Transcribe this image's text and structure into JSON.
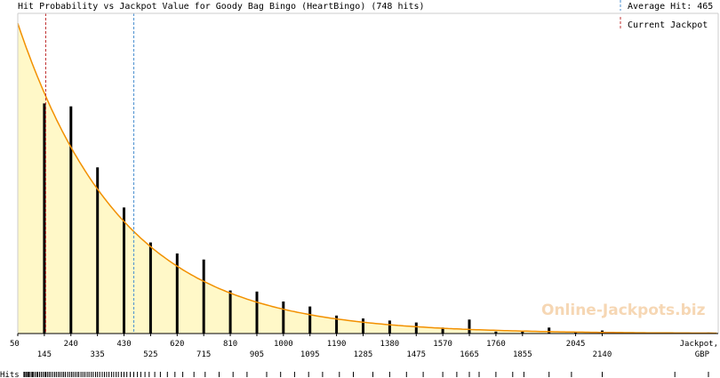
{
  "chart_data": {
    "type": "bar",
    "title": "Hit Probability vs Jackpot Value for Goody Bag Bingo (HeartBingo) (748 hits)",
    "xlabel": "Jackpot,",
    "xunit": "GBP",
    "xlim": [
      50,
      2555
    ],
    "x_ticks_upper": [
      50,
      240,
      430,
      620,
      810,
      1000,
      1190,
      1380,
      1570,
      1760,
      2045
    ],
    "x_ticks_lower": [
      145,
      335,
      525,
      715,
      905,
      1095,
      1285,
      1475,
      1665,
      1855,
      2140
    ],
    "bars": [
      {
        "x": 145,
        "value": 230
      },
      {
        "x": 240,
        "value": 227
      },
      {
        "x": 335,
        "value": 166
      },
      {
        "x": 430,
        "value": 126
      },
      {
        "x": 525,
        "value": 91
      },
      {
        "x": 620,
        "value": 80
      },
      {
        "x": 715,
        "value": 74
      },
      {
        "x": 810,
        "value": 43
      },
      {
        "x": 905,
        "value": 42
      },
      {
        "x": 1000,
        "value": 32
      },
      {
        "x": 1095,
        "value": 27
      },
      {
        "x": 1190,
        "value": 18
      },
      {
        "x": 1285,
        "value": 15
      },
      {
        "x": 1380,
        "value": 13
      },
      {
        "x": 1475,
        "value": 11
      },
      {
        "x": 1570,
        "value": 6
      },
      {
        "x": 1665,
        "value": 14
      },
      {
        "x": 1760,
        "value": 2
      },
      {
        "x": 1855,
        "value": 2
      },
      {
        "x": 1950,
        "value": 6
      },
      {
        "x": 2045,
        "value": 1
      },
      {
        "x": 2140,
        "value": 3
      },
      {
        "x": 2235,
        "value": 1
      },
      {
        "x": 2520,
        "value": 1
      }
    ],
    "ylim": [
      0,
      320
    ],
    "curve": {
      "x0": 50,
      "y0": 310,
      "decay_per_unit": 0.00268
    },
    "average_hit": 465,
    "current_jackpot": 150,
    "legend": {
      "average_label": "Average Hit: 465",
      "current_label": "Current Jackpot",
      "position": "top-right"
    },
    "hits_label": "Hits",
    "hit_marks_x": [
      72,
      75,
      80,
      85,
      88,
      92,
      98,
      102,
      106,
      112,
      118,
      122,
      128,
      134,
      140,
      146,
      150,
      156,
      162,
      168,
      175,
      182,
      188,
      195,
      201,
      208,
      214,
      220,
      228,
      235,
      242,
      248,
      255,
      262,
      268,
      276,
      283,
      290,
      298,
      305,
      313,
      320,
      328,
      335,
      343,
      352,
      360,
      368,
      376,
      385,
      393,
      402,
      410,
      420,
      430,
      440,
      452,
      465,
      478,
      490,
      505,
      520,
      540,
      560,
      585,
      612,
      640,
      680,
      720,
      770,
      820,
      870,
      940,
      990,
      1040,
      1090,
      1140,
      1200,
      1250,
      1320,
      1380,
      1440,
      1500,
      1570,
      1620,
      1665,
      1700,
      1760,
      1820,
      1860,
      1950,
      2030,
      2140,
      2400,
      2520
    ],
    "watermark": "Online-Jackpots.biz",
    "colors": {
      "fill": "#fff8c8",
      "curve": "#f29000",
      "bar": "#000000",
      "average_line": "#4a8fd0",
      "current_line": "#c03030"
    }
  }
}
